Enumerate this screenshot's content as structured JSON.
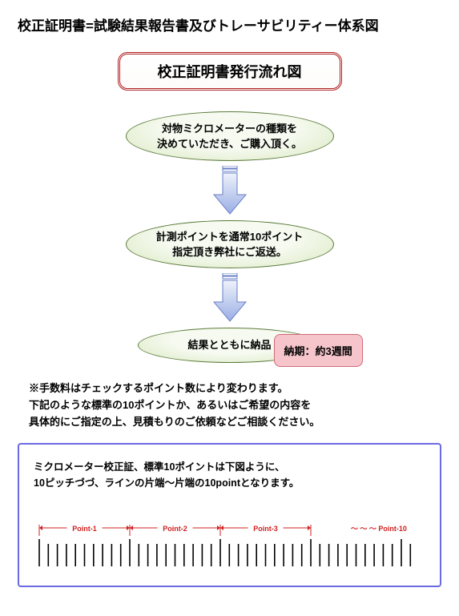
{
  "page": {
    "title": "校正証明書=試験結果報告書及びトレーサビリティー体系図"
  },
  "flow": {
    "title": "校正証明書発行流れ図",
    "step1": "対物ミクロメーターの種類を\n決めていただき、ご購入頂く。",
    "step2": "計測ポイントを通常10ポイント\n指定頂き弊社にご返送。",
    "step3": "結果とともに納品",
    "badge": "納期：約3週間",
    "arrow": {
      "fill_top": "#eef2fb",
      "fill_bottom": "#9aaee4",
      "stroke": "#6a80c8"
    },
    "ellipse": {
      "fill_inner": "#f6faf0",
      "fill_outer": "#d9e8c0",
      "stroke": "#5a7a3a"
    },
    "badge_style": {
      "fill": "#f6c5cc",
      "stroke": "#d06a78"
    },
    "title_box_stroke": "#b02020"
  },
  "note": {
    "line1": "※手数料はチェックするポイント数により変わります。",
    "line2": "下記のような標準の10ポイントか、あるいはご希望の内容を",
    "line3": "具体的にご指定の上、見積もりのご依頼などご相談ください。"
  },
  "scale": {
    "desc1": "ミクロメーター校正証、標準10ポイントは下図ように、",
    "desc2": "10ピッチづづ、ラインの片端～片端の10pointとなります。",
    "box_stroke": "#6a6ae0",
    "marker_color": "#d02020",
    "tick_color": "#000000",
    "points": [
      {
        "label": "Point-1",
        "start_tick": 0,
        "end_tick": 10
      },
      {
        "label": "Point-2",
        "start_tick": 10,
        "end_tick": 20
      },
      {
        "label": "Point-3",
        "start_tick": 20,
        "end_tick": 30
      }
    ],
    "last_label": "Point-10",
    "tilde": "～  ～  ～",
    "ticks_per_group": 10,
    "total_ticks": 42,
    "tick_spacing_px": 11.3,
    "tick_height_short": 28,
    "tick_height_tall": 34
  }
}
